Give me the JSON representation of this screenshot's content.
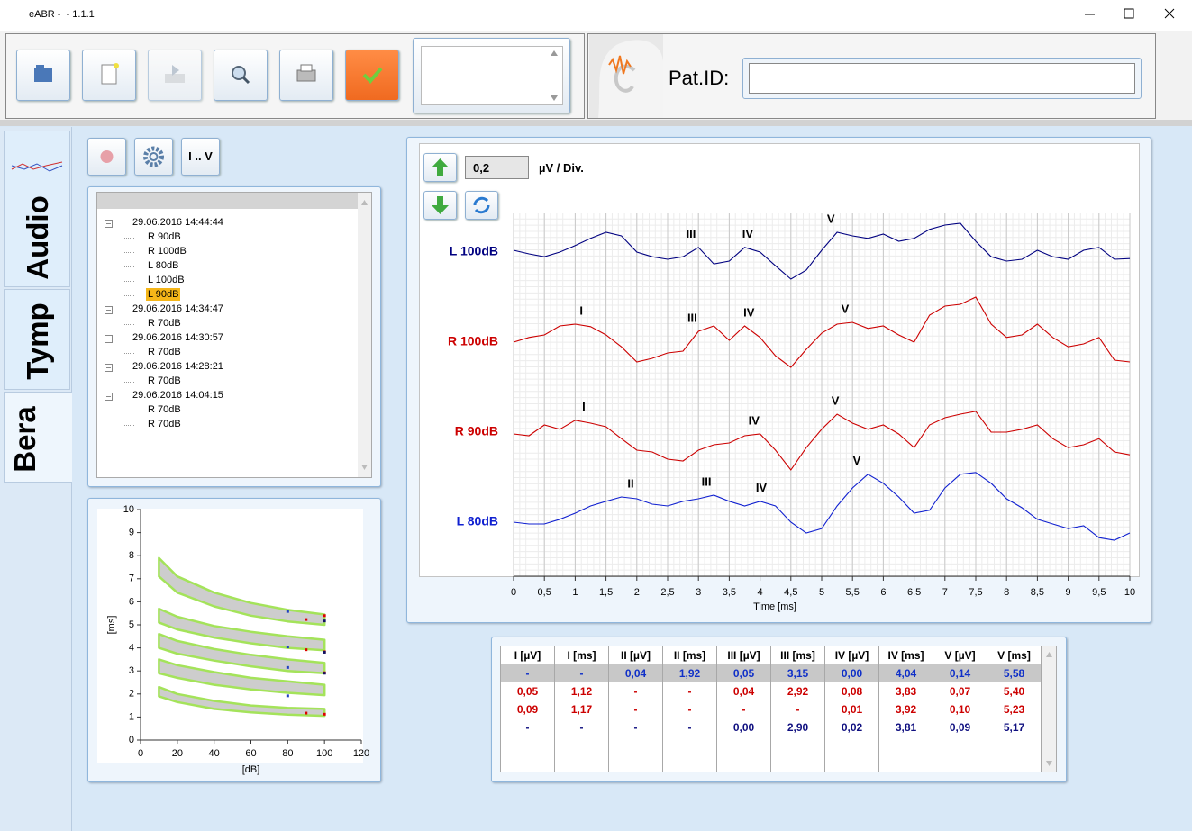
{
  "window": {
    "title": "eABR -  - 1.1.1"
  },
  "patient": {
    "label": "Pat.ID:"
  },
  "tabs": [
    "Audio",
    "Tymp",
    "Bera"
  ],
  "toolbar": {
    "range_button": "I .. V"
  },
  "tree": [
    {
      "label": "29.06.2016 14:44:44",
      "children": [
        {
          "label": "R 90dB"
        },
        {
          "label": "R 100dB"
        },
        {
          "label": "L 80dB"
        },
        {
          "label": "L 100dB"
        },
        {
          "label": "L 90dB",
          "selected": true
        }
      ]
    },
    {
      "label": "29.06.2016 14:34:47",
      "children": [
        {
          "label": "R 70dB"
        }
      ]
    },
    {
      "label": "29.06.2016 14:30:57",
      "children": [
        {
          "label": "R 70dB"
        }
      ]
    },
    {
      "label": "29.06.2016 14:28:21",
      "children": [
        {
          "label": "R 70dB"
        }
      ]
    },
    {
      "label": "29.06.2016 14:04:15",
      "children": [
        {
          "label": "R 70dB"
        },
        {
          "label": "R 70dB"
        }
      ]
    }
  ],
  "chart_data": [
    {
      "type": "line",
      "x_label": "Time [ms]",
      "scale_value": "0,2",
      "scale_unit": "µV / Div.",
      "x": [
        0,
        0.25,
        0.5,
        0.75,
        1,
        1.25,
        1.5,
        1.75,
        2,
        2.25,
        2.5,
        2.75,
        3,
        3.25,
        3.5,
        3.75,
        4,
        4.25,
        4.5,
        4.75,
        5,
        5.25,
        5.5,
        5.75,
        6,
        6.25,
        6.5,
        6.75,
        7,
        7.25,
        7.5,
        7.75,
        8,
        8.25,
        8.5,
        8.75,
        9,
        9.25,
        9.5,
        9.75,
        10
      ],
      "series": [
        {
          "name": "L 100dB",
          "color": "#000080",
          "values": [
            0.005,
            -0.005,
            -0.013,
            0,
            0.018,
            0.038,
            0.055,
            0.045,
            0,
            -0.013,
            -0.02,
            -0.013,
            0.013,
            -0.033,
            -0.025,
            0.013,
            0,
            -0.038,
            -0.075,
            -0.05,
            0.005,
            0.055,
            0.045,
            0.038,
            0.05,
            0.03,
            0.038,
            0.063,
            0.075,
            0.08,
            0.03,
            -0.013,
            -0.025,
            -0.02,
            0.005,
            -0.013,
            -0.02,
            0.005,
            0.013,
            -0.02,
            -0.018
          ],
          "peaks": [
            {
              "label": "III",
              "x": 2.88
            },
            {
              "label": "IV",
              "x": 3.8
            },
            {
              "label": "V",
              "x": 5.15
            }
          ]
        },
        {
          "name": "R 100dB",
          "color": "#cc0000",
          "values": [
            0,
            0.013,
            0.02,
            0.045,
            0.05,
            0.043,
            0.02,
            -0.013,
            -0.055,
            -0.045,
            -0.03,
            -0.025,
            0.03,
            0.045,
            0.005,
            0.045,
            0.013,
            -0.038,
            -0.07,
            -0.02,
            0.025,
            0.05,
            0.055,
            0.038,
            0.045,
            0.02,
            0,
            0.075,
            0.1,
            0.105,
            0.125,
            0.05,
            0.013,
            0.02,
            0.05,
            0.013,
            -0.013,
            -0.005,
            0.013,
            -0.05,
            -0.055
          ],
          "peaks": [
            {
              "label": "I",
              "x": 1.1
            },
            {
              "label": "III",
              "x": 2.9
            },
            {
              "label": "IV",
              "x": 3.82
            },
            {
              "label": "V",
              "x": 5.38
            }
          ]
        },
        {
          "name": "R 90dB",
          "color": "#cc0000",
          "values": [
            -0.005,
            -0.01,
            0.02,
            0.008,
            0.033,
            0.025,
            0.015,
            -0.018,
            -0.05,
            -0.055,
            -0.075,
            -0.08,
            -0.05,
            -0.035,
            -0.03,
            -0.01,
            -0.005,
            -0.05,
            -0.105,
            -0.043,
            0.008,
            0.05,
            0.025,
            0.008,
            0.02,
            -0.005,
            -0.043,
            0.02,
            0.04,
            0.05,
            0.058,
            0,
            0,
            0.008,
            0.02,
            -0.018,
            -0.043,
            -0.035,
            -0.018,
            -0.055,
            -0.063
          ],
          "peaks": [
            {
              "label": "I",
              "x": 1.14
            },
            {
              "label": "IV",
              "x": 3.9
            },
            {
              "label": "V",
              "x": 5.22
            }
          ]
        },
        {
          "name": "L 80dB",
          "color": "#1020d0",
          "values": [
            0,
            -0.005,
            -0.005,
            0.008,
            0.025,
            0.045,
            0.058,
            0.07,
            0.065,
            0.05,
            0.045,
            0.058,
            0.065,
            0.075,
            0.058,
            0.045,
            0.058,
            0.045,
            0,
            -0.03,
            -0.018,
            0.045,
            0.095,
            0.133,
            0.108,
            0.07,
            0.025,
            0.033,
            0.095,
            0.133,
            0.138,
            0.108,
            0.065,
            0.04,
            0.008,
            -0.005,
            -0.018,
            -0.01,
            -0.043,
            -0.05,
            -0.03
          ],
          "peaks": [
            {
              "label": "II",
              "x": 1.9
            },
            {
              "label": "III",
              "x": 3.13
            },
            {
              "label": "IV",
              "x": 4.02
            },
            {
              "label": "V",
              "x": 5.57
            }
          ]
        }
      ],
      "xlim": [
        0,
        10
      ],
      "xticks": [
        0,
        {
          "value": 0.5,
          "label": "0,5"
        },
        1,
        {
          "value": 1.5,
          "label": "1,5"
        },
        2,
        {
          "value": 2.5,
          "label": "2,5"
        },
        3,
        {
          "value": 3.5,
          "label": "3,5"
        },
        4,
        {
          "value": 4.5,
          "label": "4,5"
        },
        5,
        {
          "value": 5.5,
          "label": "5,5"
        },
        6,
        {
          "value": 6.5,
          "label": "6,5"
        },
        7,
        {
          "value": 7.5,
          "label": "7,5"
        },
        8,
        {
          "value": 8.5,
          "label": "8,5"
        },
        9,
        {
          "value": 9.5,
          "label": "9,5"
        },
        10
      ],
      "grid": true
    },
    {
      "type": "scatter",
      "xlabel": "[dB]",
      "ylabel": "[ms]",
      "xlim": [
        0,
        120
      ],
      "ylim": [
        0,
        10
      ],
      "xticks": [
        0,
        20,
        40,
        60,
        80,
        100,
        120
      ],
      "yticks": [
        0,
        1,
        2,
        3,
        4,
        5,
        6,
        7,
        8,
        9,
        10
      ],
      "band_fill": "#cdcdcd",
      "band_edge": "#a4e35a",
      "bands": [
        {
          "x": [
            10,
            20,
            40,
            60,
            80,
            100
          ],
          "lower": [
            7.1,
            6.4,
            5.8,
            5.4,
            5.15,
            5.0
          ],
          "upper": [
            7.9,
            7.1,
            6.4,
            5.95,
            5.65,
            5.45
          ]
        },
        {
          "x": [
            10,
            20,
            40,
            60,
            80,
            100
          ],
          "lower": [
            5.1,
            4.8,
            4.45,
            4.2,
            4.0,
            3.9
          ],
          "upper": [
            5.7,
            5.35,
            4.95,
            4.7,
            4.5,
            4.35
          ]
        },
        {
          "x": [
            10,
            20,
            40,
            60,
            80,
            100
          ],
          "lower": [
            4.0,
            3.75,
            3.45,
            3.2,
            3.0,
            2.9
          ],
          "upper": [
            4.6,
            4.3,
            3.95,
            3.7,
            3.5,
            3.35
          ]
        },
        {
          "x": [
            10,
            20,
            40,
            60,
            80,
            100
          ],
          "lower": [
            2.9,
            2.7,
            2.4,
            2.2,
            2.05,
            1.95
          ],
          "upper": [
            3.5,
            3.25,
            2.95,
            2.7,
            2.55,
            2.4
          ]
        },
        {
          "x": [
            10,
            20,
            40,
            60,
            80,
            100
          ],
          "lower": [
            1.9,
            1.65,
            1.35,
            1.2,
            1.1,
            1.05
          ],
          "upper": [
            2.3,
            2.0,
            1.7,
            1.5,
            1.4,
            1.35
          ]
        }
      ],
      "series": [
        {
          "color": "#2040c0",
          "x": [
            80,
            80,
            80,
            80,
            80
          ],
          "values": [
            null,
            1.92,
            3.15,
            4.04,
            5.58
          ]
        },
        {
          "color": "#dd0000",
          "x": [
            100,
            100,
            100,
            100,
            100
          ],
          "values": [
            1.12,
            null,
            2.92,
            3.83,
            5.4
          ]
        },
        {
          "color": "#dd0000",
          "x": [
            90,
            90,
            90,
            90,
            90
          ],
          "values": [
            1.17,
            null,
            null,
            3.92,
            5.23
          ]
        },
        {
          "color": "#101060",
          "x": [
            100,
            100,
            100,
            100,
            100
          ],
          "values": [
            null,
            null,
            2.9,
            3.81,
            5.17
          ]
        }
      ]
    }
  ],
  "table": {
    "headers": [
      "I [µV]",
      "I [ms]",
      "II [µV]",
      "II [ms]",
      "III [µV]",
      "III [ms]",
      "IV [µV]",
      "IV [ms]",
      "V [µV]",
      "V [ms]"
    ],
    "rows": [
      {
        "color": "#1030c8",
        "selected": true,
        "cells": [
          "-",
          "-",
          "0,04",
          "1,92",
          "0,05",
          "3,15",
          "0,00",
          "4,04",
          "0,14",
          "5,58"
        ]
      },
      {
        "color": "#cc0000",
        "cells": [
          "0,05",
          "1,12",
          "-",
          "-",
          "0,04",
          "2,92",
          "0,08",
          "3,83",
          "0,07",
          "5,40"
        ]
      },
      {
        "color": "#cc0000",
        "cells": [
          "0,09",
          "1,17",
          "-",
          "-",
          "-",
          "-",
          "0,01",
          "3,92",
          "0,10",
          "5,23"
        ]
      },
      {
        "color": "#101080",
        "cells": [
          "-",
          "-",
          "-",
          "-",
          "0,00",
          "2,90",
          "0,02",
          "3,81",
          "0,09",
          "5,17"
        ]
      }
    ]
  }
}
